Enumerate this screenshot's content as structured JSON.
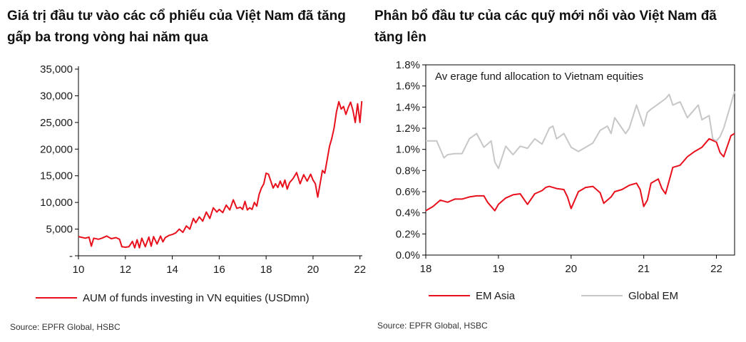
{
  "colors": {
    "em_asia": "#e8101c",
    "global_em": "#c7c7c7",
    "axis": "#000000",
    "text": "#1a1a1a"
  },
  "left": {
    "title": "Giá trị đầu tư vào các cổ phiếu của Việt Nam đã tăng gấp ba trong vòng hai năm qua",
    "source": "Source: EPFR Global, HSBC"
  },
  "right": {
    "title": "Phân bổ đầu tư của các quỹ mới nổi vào Việt Nam đã tăng lên",
    "source": "Source: EPFR Global, HSBC"
  },
  "chart_data": [
    {
      "type": "line",
      "title": "",
      "xlabel": "",
      "ylabel": "",
      "x_ticks": [
        "10",
        "12",
        "14",
        "16",
        "18",
        "20",
        "22"
      ],
      "x_tick_values": [
        2010,
        2012,
        2014,
        2016,
        2018,
        2020,
        2022
      ],
      "y_ticks": [
        "-",
        "5,000",
        "10,000",
        "15,000",
        "20,000",
        "25,000",
        "30,000",
        "35,000"
      ],
      "y_tick_values": [
        0,
        5000,
        10000,
        15000,
        20000,
        25000,
        30000,
        35000
      ],
      "xlim": [
        2010,
        2022.1
      ],
      "ylim": [
        0,
        35000
      ],
      "legend_position": "bottom",
      "series": [
        {
          "name": "AUM of funds investing in VN equities (USDmn)",
          "x": [
            2010.0,
            2010.3,
            2010.45,
            2010.55,
            2010.65,
            2010.85,
            2011.0,
            2011.2,
            2011.4,
            2011.6,
            2011.75,
            2011.85,
            2012.0,
            2012.15,
            2012.3,
            2012.4,
            2012.5,
            2012.6,
            2012.7,
            2012.85,
            2013.0,
            2013.1,
            2013.2,
            2013.35,
            2013.5,
            2013.6,
            2013.7,
            2013.85,
            2014.0,
            2014.15,
            2014.3,
            2014.45,
            2014.6,
            2014.75,
            2014.9,
            2015.0,
            2015.15,
            2015.3,
            2015.45,
            2015.6,
            2015.75,
            2015.9,
            2016.0,
            2016.15,
            2016.3,
            2016.45,
            2016.6,
            2016.75,
            2016.9,
            2017.0,
            2017.1,
            2017.2,
            2017.3,
            2017.4,
            2017.5,
            2017.6,
            2017.7,
            2017.8,
            2017.9,
            2018.0,
            2018.1,
            2018.2,
            2018.3,
            2018.4,
            2018.5,
            2018.6,
            2018.7,
            2018.8,
            2018.9,
            2019.0,
            2019.15,
            2019.3,
            2019.45,
            2019.6,
            2019.75,
            2019.9,
            2020.0,
            2020.1,
            2020.2,
            2020.3,
            2020.4,
            2020.5,
            2020.6,
            2020.7,
            2020.8,
            2020.9,
            2021.0,
            2021.1,
            2021.2,
            2021.3,
            2021.4,
            2021.5,
            2021.6,
            2021.7,
            2021.8,
            2021.9,
            2022.0,
            2022.08
          ],
          "values": [
            3600,
            3300,
            3500,
            1800,
            3300,
            3100,
            3300,
            3700,
            3200,
            3400,
            3100,
            1700,
            1600,
            1700,
            2700,
            1500,
            3000,
            1500,
            3300,
            1700,
            3500,
            1800,
            3600,
            2200,
            3700,
            2600,
            3400,
            3800,
            4000,
            4300,
            5000,
            4400,
            5600,
            5000,
            7000,
            6200,
            7300,
            6500,
            8200,
            7000,
            9000,
            8200,
            8700,
            8100,
            9500,
            8600,
            10500,
            8900,
            9100,
            8700,
            10200,
            8600,
            9000,
            8700,
            10000,
            9300,
            11500,
            12700,
            13500,
            15500,
            15300,
            14000,
            12700,
            13500,
            12800,
            14000,
            12900,
            14200,
            12500,
            13700,
            14500,
            15600,
            13500,
            15200,
            14000,
            15300,
            14200,
            13500,
            11000,
            13500,
            16000,
            15500,
            18000,
            20500,
            22000,
            24000,
            27000,
            28900,
            27500,
            28000,
            26500,
            27800,
            28800,
            27300,
            25000,
            28500,
            25000,
            29000
          ]
        }
      ]
    },
    {
      "type": "line",
      "title": "Av erage fund allocation to Vietnam equities",
      "xlabel": "",
      "ylabel": "",
      "x_ticks": [
        "18",
        "19",
        "20",
        "21",
        "22"
      ],
      "x_tick_values": [
        2018,
        2019,
        2020,
        2021,
        2022
      ],
      "y_ticks": [
        "0.0%",
        "0.2%",
        "0.4%",
        "0.6%",
        "0.8%",
        "1.0%",
        "1.2%",
        "1.4%",
        "1.6%",
        "1.8%"
      ],
      "y_tick_values": [
        0.0,
        0.2,
        0.4,
        0.6,
        0.8,
        1.0,
        1.2,
        1.4,
        1.6,
        1.8
      ],
      "xlim": [
        2018,
        2022.25
      ],
      "ylim": [
        0.0,
        1.8
      ],
      "legend_position": "bottom",
      "series": [
        {
          "name": "EM Asia",
          "x": [
            2018.0,
            2018.1,
            2018.2,
            2018.3,
            2018.4,
            2018.5,
            2018.6,
            2018.7,
            2018.8,
            2018.85,
            2018.95,
            2019.0,
            2019.1,
            2019.2,
            2019.3,
            2019.4,
            2019.5,
            2019.6,
            2019.65,
            2019.7,
            2019.8,
            2019.9,
            2019.95,
            2020.0,
            2020.1,
            2020.2,
            2020.3,
            2020.4,
            2020.45,
            2020.55,
            2020.6,
            2020.7,
            2020.8,
            2020.9,
            2020.95,
            2021.0,
            2021.05,
            2021.1,
            2021.2,
            2021.25,
            2021.3,
            2021.4,
            2021.5,
            2021.6,
            2021.7,
            2021.8,
            2021.9,
            2022.0,
            2022.05,
            2022.1,
            2022.2,
            2022.25
          ],
          "values": [
            0.42,
            0.46,
            0.52,
            0.5,
            0.53,
            0.53,
            0.55,
            0.56,
            0.56,
            0.5,
            0.42,
            0.48,
            0.54,
            0.57,
            0.58,
            0.48,
            0.58,
            0.61,
            0.64,
            0.65,
            0.63,
            0.62,
            0.55,
            0.44,
            0.6,
            0.64,
            0.65,
            0.59,
            0.49,
            0.55,
            0.6,
            0.62,
            0.66,
            0.68,
            0.62,
            0.46,
            0.52,
            0.68,
            0.72,
            0.63,
            0.58,
            0.83,
            0.85,
            0.93,
            0.98,
            1.02,
            1.1,
            1.07,
            0.97,
            0.93,
            1.13,
            1.15
          ]
        },
        {
          "name": "Global EM",
          "x": [
            2018.0,
            2018.1,
            2018.15,
            2018.25,
            2018.3,
            2018.4,
            2018.5,
            2018.6,
            2018.7,
            2018.8,
            2018.9,
            2018.95,
            2019.0,
            2019.1,
            2019.2,
            2019.3,
            2019.4,
            2019.5,
            2019.6,
            2019.7,
            2019.75,
            2019.8,
            2019.9,
            2020.0,
            2020.1,
            2020.2,
            2020.3,
            2020.4,
            2020.5,
            2020.55,
            2020.6,
            2020.7,
            2020.75,
            2020.8,
            2020.9,
            2021.0,
            2021.05,
            2021.1,
            2021.2,
            2021.3,
            2021.35,
            2021.4,
            2021.5,
            2021.6,
            2021.7,
            2021.75,
            2021.8,
            2021.9,
            2021.95,
            2022.0,
            2022.05,
            2022.1,
            2022.2,
            2022.25
          ],
          "values": [
            1.08,
            1.08,
            1.08,
            0.92,
            0.95,
            0.96,
            0.96,
            1.1,
            1.15,
            1.02,
            1.08,
            0.88,
            0.82,
            1.03,
            0.95,
            1.03,
            1.01,
            1.1,
            1.05,
            1.2,
            1.22,
            1.1,
            1.15,
            1.02,
            0.98,
            1.02,
            1.06,
            1.18,
            1.22,
            1.15,
            1.3,
            1.2,
            1.15,
            1.2,
            1.42,
            1.22,
            1.35,
            1.38,
            1.43,
            1.48,
            1.52,
            1.42,
            1.45,
            1.3,
            1.38,
            1.42,
            1.28,
            1.32,
            1.1,
            1.08,
            1.12,
            1.2,
            1.43,
            1.55
          ]
        }
      ]
    }
  ]
}
